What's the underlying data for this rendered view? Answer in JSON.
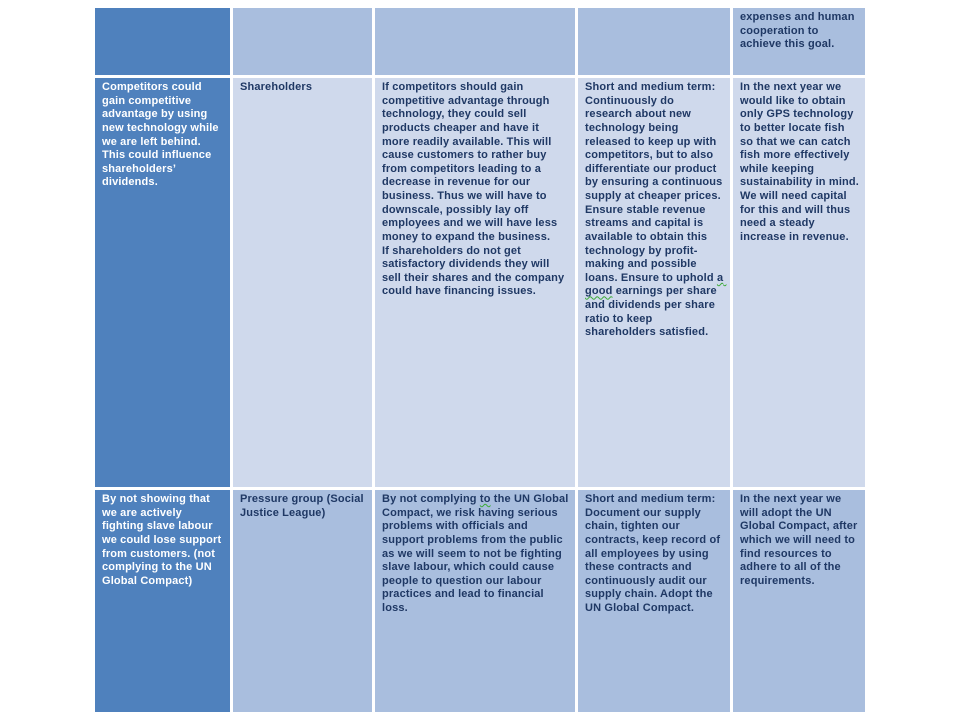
{
  "colors": {
    "header_column": "#4f81bd",
    "band_light": "#cfd9ec",
    "band_medium": "#a9bede",
    "text_dark": "#1f3864",
    "text_white": "#ffffff",
    "page_background": "#ffffff",
    "grammar_squiggle_green": "#3aaa35"
  },
  "table": {
    "partial_top_row": {
      "col5": "expenses and human cooperation to achieve this goal."
    },
    "rows": [
      {
        "risk": "Competitors could gain competitive advantage by using new technology while we are left behind. This could influence shareholders’ dividends.",
        "stakeholder": "Shareholders",
        "impact": "If competitors should gain competitive advantage through technology, they could sell products cheaper and have it more readily available. This will cause customers to rather buy from competitors leading to a decrease in revenue for our business. Thus we will have to downscale, possibly lay off employees and we will have less money to expand the business.\nIf shareholders do not get satisfactory dividends they will sell their shares and the company could have financing issues.",
        "strategy_pre": "Short and medium term: Continuously do research about new technology being released to keep up with competitors, but to also differentiate our product by ensuring a continuous supply at cheaper prices. Ensure stable revenue streams and capital is available to obtain this technology by profit-making and possible loans. Ensure to uphold ",
        "strategy_squiggle": "a good",
        "strategy_post": " earnings per share and dividends per share ratio to keep shareholders satisfied.",
        "goal": "In the next year we would like to obtain only GPS technology to better locate fish so that we can catch fish more effectively while keeping sustainability in mind. We will need capital for this and will thus need a steady increase in revenue."
      },
      {
        "risk": "By not showing that we are actively fighting slave labour we could lose support from customers. (not complying to the UN Global Compact)",
        "stakeholder": "Pressure group (Social Justice League)",
        "impact_pre": "By not complying ",
        "impact_squiggle": "to",
        "impact_post": " the UN Global Compact, we risk having serious problems with officials and support problems from the public as we will seem to not be fighting slave labour, which could cause people to question our labour practices and lead to financial loss.",
        "strategy": "Short and medium term: Document our supply chain, tighten our contracts, keep record of all employees by using these contracts and continuously audit our supply chain. Adopt the UN Global Compact.",
        "goal": "In the next year we will adopt the UN Global Compact, after which we will need to find resources to adhere to all of the requirements."
      }
    ]
  }
}
